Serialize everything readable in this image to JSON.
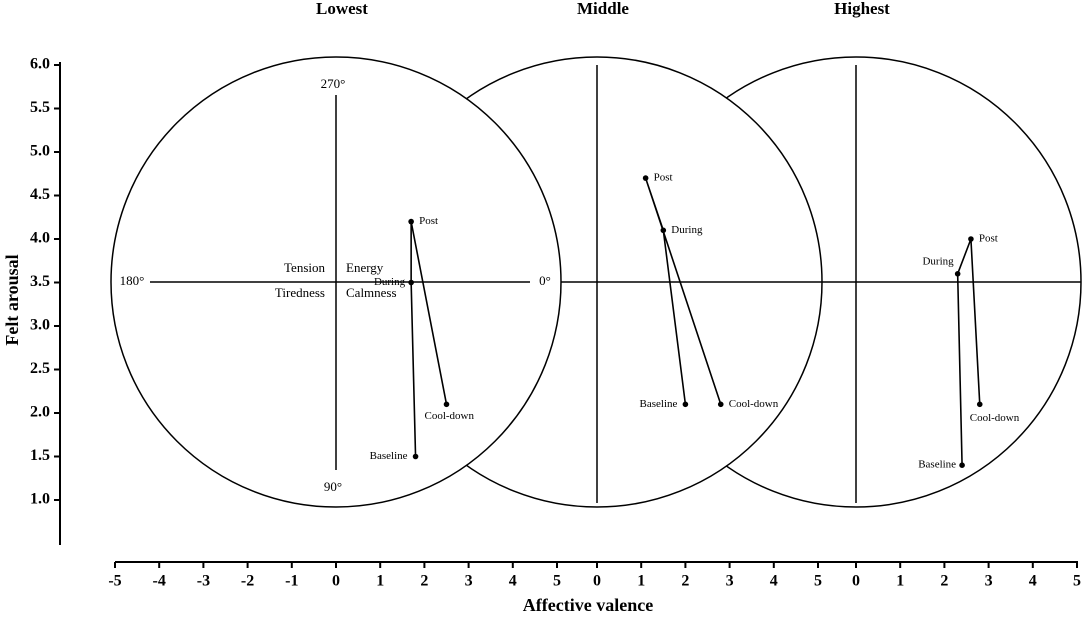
{
  "chart_data": [
    {
      "type": "line",
      "title": "Lowest",
      "xlabel": "Affective valence",
      "ylabel": "Felt arousal",
      "color": "#000000",
      "labels": [
        "Baseline",
        "During",
        "Post",
        "Cool-down"
      ],
      "x": [
        1.8,
        1.7,
        1.7,
        2.5
      ],
      "values": [
        1.5,
        3.5,
        4.2,
        2.1
      ],
      "xlim": [
        -5,
        5
      ],
      "xticks": [
        -5,
        -4,
        -3,
        -2,
        -1,
        0,
        1,
        2,
        3,
        4,
        5
      ],
      "ylim": [
        0.5,
        6.0
      ],
      "yticks": [
        {
          "value": 1,
          "label": "1.0"
        },
        1.5,
        {
          "value": 2,
          "label": "2.0"
        },
        2.5,
        {
          "value": 3,
          "label": "3.0"
        },
        3.5,
        {
          "value": 4,
          "label": "4.0"
        },
        4.5,
        {
          "value": 5,
          "label": "5.0"
        },
        5.5,
        {
          "value": 6,
          "label": "6.0"
        }
      ],
      "annotations": [
        "270°",
        "90°",
        "180°",
        "0°",
        "Tension",
        "Energy",
        "Tiredness",
        "Calmness"
      ]
    },
    {
      "type": "line",
      "title": "Middle",
      "color": "#000000",
      "labels": [
        "Baseline",
        "During",
        "Post",
        "Cool-down"
      ],
      "x": [
        2.0,
        1.5,
        1.1,
        2.8
      ],
      "values": [
        2.1,
        4.1,
        4.7,
        2.1
      ],
      "xlim": [
        -5,
        5
      ],
      "xticks": [
        0,
        1,
        2,
        3,
        4,
        5
      ]
    },
    {
      "type": "line",
      "title": "Highest",
      "color": "#000000",
      "labels": [
        "Baseline",
        "During",
        "Post",
        "Cool-down"
      ],
      "x": [
        2.4,
        2.3,
        2.6,
        2.8
      ],
      "values": [
        1.4,
        3.6,
        4.0,
        2.1
      ],
      "xlim": [
        -5,
        5
      ],
      "xticks": [
        0,
        1,
        2,
        3,
        4,
        5
      ]
    }
  ]
}
